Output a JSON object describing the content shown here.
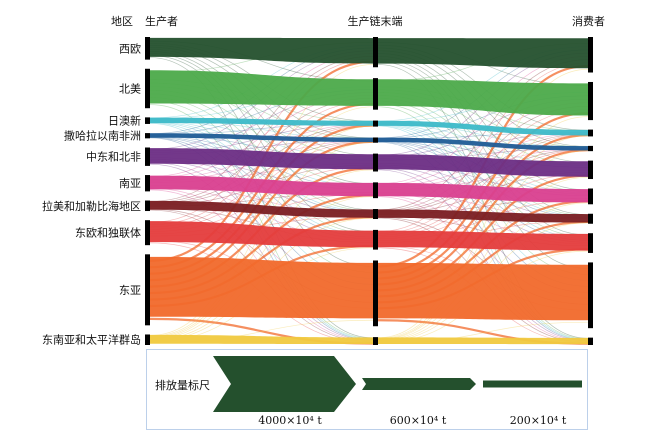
{
  "chart_data": {
    "type": "sankey",
    "title": "",
    "stages": [
      "生产者",
      "生产链末端",
      "消费者"
    ],
    "region_header": "地区",
    "regions": [
      {
        "name": "西欧",
        "color": "#24502d",
        "producer": 860,
        "end": 1150,
        "consumer": 1350
      },
      {
        "name": "北美",
        "color": "#4caa4a",
        "producer": 1500,
        "end": 1200,
        "consumer": 1450
      },
      {
        "name": "日澳新",
        "color": "#3cb9c8",
        "producer": 250,
        "end": 230,
        "consumer": 260
      },
      {
        "name": "撒哈拉以南非洲",
        "color": "#1f5c96",
        "producer": 200,
        "end": 200,
        "consumer": 200
      },
      {
        "name": "中东和北非",
        "color": "#6b2d84",
        "producer": 700,
        "end": 680,
        "consumer": 700
      },
      {
        "name": "南亚",
        "color": "#d93f8f",
        "producer": 620,
        "end": 600,
        "consumer": 600
      },
      {
        "name": "拉美和加勒比海地区",
        "color": "#7a1d22",
        "producer": 400,
        "end": 380,
        "consumer": 380
      },
      {
        "name": "东欧和独联体",
        "color": "#e43c3c",
        "producer": 950,
        "end": 750,
        "consumer": 750
      },
      {
        "name": "东亚",
        "color": "#f1692b",
        "producer": 2700,
        "end": 2500,
        "consumer": 2500
      },
      {
        "name": "东南亚和太平洋群岛",
        "color": "#f0c93f",
        "producer": 400,
        "end": 300,
        "consumer": 280
      }
    ],
    "legend": {
      "title": "排放量标尺",
      "scale": [
        {
          "value": 4000,
          "label": "4000×10⁴ t"
        },
        {
          "value": 600,
          "label": "600×10⁴ t"
        },
        {
          "value": 200,
          "label": "200×10⁴ t"
        }
      ],
      "color": "#24502d",
      "border_color": "#bcd0ea"
    }
  }
}
